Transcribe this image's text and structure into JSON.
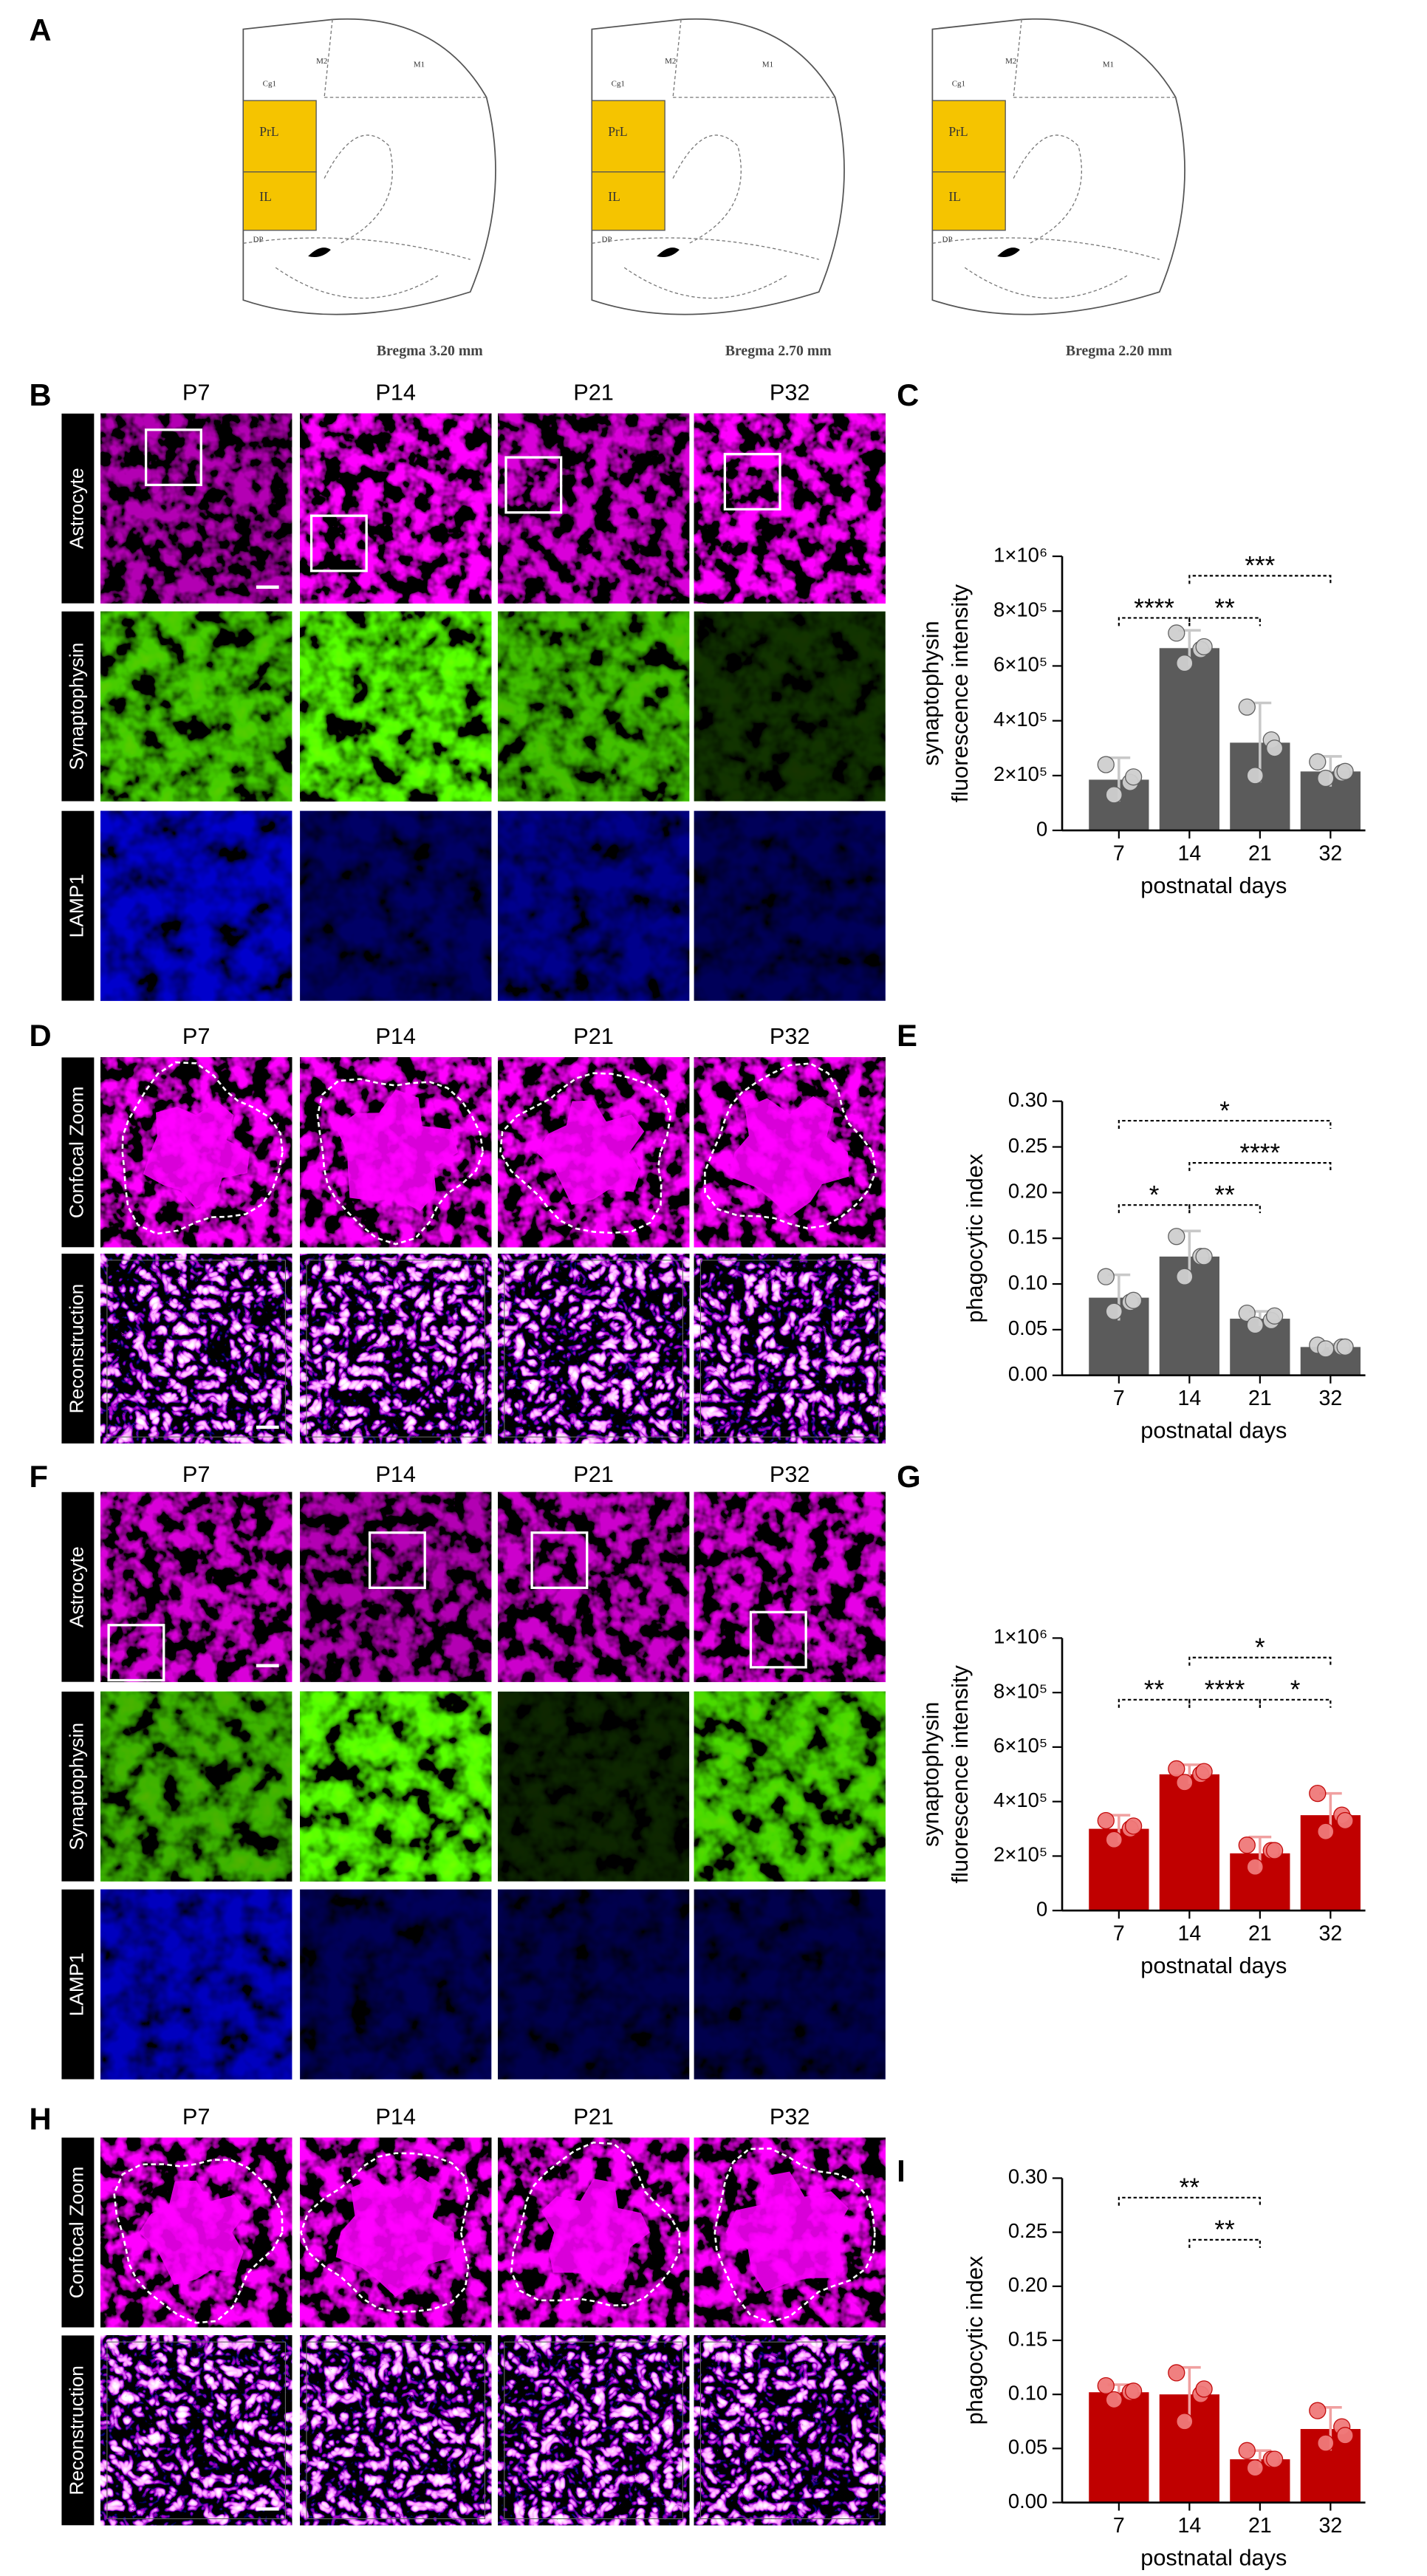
{
  "panel_letters": [
    "A",
    "B",
    "C",
    "D",
    "E",
    "F",
    "G",
    "H",
    "I"
  ],
  "atlas": {
    "bregma": [
      "Bregma 3.20 mm",
      "Bregma 2.70 mm",
      "Bregma 2.20 mm"
    ],
    "region_labels": [
      "M2",
      "M1",
      "Cg1",
      "PrL",
      "IL",
      "DP"
    ]
  },
  "image_grids": [
    {
      "columns": [
        "P7",
        "P14",
        "P21",
        "P32"
      ],
      "rows": [
        "Astrocyte",
        "Synaptophysin",
        "LAMP1"
      ]
    },
    {
      "columns": [
        "P7",
        "P14",
        "P21",
        "P32"
      ],
      "rows": [
        "Confocal Zoom",
        "Reconstruction"
      ]
    },
    {
      "columns": [
        "P7",
        "P14",
        "P21",
        "P32"
      ],
      "rows": [
        "Astrocyte",
        "Synaptophysin",
        "LAMP1"
      ]
    },
    {
      "columns": [
        "P7",
        "P14",
        "P21",
        "P32"
      ],
      "rows": [
        "Confocal Zoom",
        "Reconstruction"
      ]
    }
  ],
  "chart_data": [
    {
      "type": "bar",
      "y_label": [
        "synaptophysin",
        "fluorescence intensity"
      ],
      "x_label": "postnatal days",
      "categories": [
        "7",
        "14",
        "21",
        "32"
      ],
      "values": [
        185000,
        665000,
        320000,
        215000
      ],
      "errors": [
        80000,
        65000,
        145000,
        55000
      ],
      "points": [
        [
          240000,
          175000,
          130000,
          195000
        ],
        [
          720000,
          660000,
          610000,
          670000
        ],
        [
          450000,
          330000,
          200000,
          300000
        ],
        [
          250000,
          210000,
          190000,
          215000
        ]
      ],
      "color": "#5b5b5b",
      "point_color": "#cfcfcf",
      "error_color": "#c8c8c8",
      "ylim": [
        0,
        1000000
      ],
      "yticks": [
        0,
        {
          "value": 200000,
          "label": "2×10⁵"
        },
        {
          "value": 400000,
          "label": "4×10⁵"
        },
        {
          "value": 600000,
          "label": "6×10⁵"
        },
        {
          "value": 800000,
          "label": "8×10⁵"
        },
        {
          "value": 1000000,
          "label": "1×10⁶"
        }
      ],
      "significance": [
        {
          "pair": [
            "7",
            "14"
          ],
          "label": "****"
        },
        {
          "pair": [
            "14",
            "21"
          ],
          "label": "**"
        },
        {
          "pair": [
            "14",
            "32"
          ],
          "label": "***"
        }
      ]
    },
    {
      "type": "bar",
      "y_label": [
        "phagocytic index"
      ],
      "x_label": "postnatal days",
      "categories": [
        "7",
        "14",
        "21",
        "32"
      ],
      "values": [
        0.085,
        0.13,
        0.062,
        0.031
      ],
      "errors": [
        0.025,
        0.028,
        0.008,
        0.003
      ],
      "points": [
        [
          0.108,
          0.08,
          0.07,
          0.082
        ],
        [
          0.152,
          0.13,
          0.108,
          0.13
        ],
        [
          0.068,
          0.06,
          0.055,
          0.065
        ],
        [
          0.033,
          0.031,
          0.029,
          0.031
        ]
      ],
      "color": "#5b5b5b",
      "point_color": "#cfcfcf",
      "error_color": "#c8c8c8",
      "ylim": [
        0,
        0.3
      ],
      "yticks": [
        {
          "value": 0,
          "label": "0.00"
        },
        {
          "value": 0.05,
          "label": "0.05"
        },
        {
          "value": 0.1,
          "label": "0.10"
        },
        {
          "value": 0.15,
          "label": "0.15"
        },
        {
          "value": 0.2,
          "label": "0.20"
        },
        {
          "value": 0.25,
          "label": "0.25"
        },
        {
          "value": 0.3,
          "label": "0.30"
        }
      ],
      "significance": [
        {
          "pair": [
            "7",
            "32"
          ],
          "label": "*"
        },
        {
          "pair": [
            "14",
            "32"
          ],
          "label": "****"
        },
        {
          "pair": [
            "7",
            "14"
          ],
          "label": "*"
        },
        {
          "pair": [
            "14",
            "21"
          ],
          "label": "**"
        }
      ]
    },
    {
      "type": "bar",
      "y_label": [
        "synaptophysin",
        "fluorescence intensity"
      ],
      "x_label": "postnatal days",
      "categories": [
        "7",
        "14",
        "21",
        "32"
      ],
      "values": [
        300000,
        500000,
        210000,
        350000
      ],
      "errors": [
        50000,
        35000,
        60000,
        80000
      ],
      "points": [
        [
          330000,
          300000,
          260000,
          310000
        ],
        [
          520000,
          500000,
          470000,
          510000
        ],
        [
          240000,
          220000,
          160000,
          220000
        ],
        [
          430000,
          350000,
          290000,
          330000
        ]
      ],
      "color": "#c00000",
      "point_color": "#f07a7a",
      "error_color": "#f0a0a0",
      "ylim": [
        0,
        1000000
      ],
      "yticks": [
        0,
        {
          "value": 200000,
          "label": "2×10⁵"
        },
        {
          "value": 400000,
          "label": "4×10⁵"
        },
        {
          "value": 600000,
          "label": "6×10⁵"
        },
        {
          "value": 800000,
          "label": "8×10⁵"
        },
        {
          "value": 1000000,
          "label": "1×10⁶"
        }
      ],
      "significance": [
        {
          "pair": [
            "14",
            "32"
          ],
          "label": "*"
        },
        {
          "pair": [
            "7",
            "14"
          ],
          "label": "**"
        },
        {
          "pair": [
            "14",
            "21"
          ],
          "label": "****"
        },
        {
          "pair": [
            "21",
            "32"
          ],
          "label": "*"
        }
      ]
    },
    {
      "type": "bar",
      "y_label": [
        "phagocytic index"
      ],
      "x_label": "postnatal days",
      "categories": [
        "7",
        "14",
        "21",
        "32"
      ],
      "values": [
        0.102,
        0.1,
        0.04,
        0.068
      ],
      "errors": [
        0.007,
        0.025,
        0.008,
        0.02
      ],
      "points": [
        [
          0.108,
          0.102,
          0.095,
          0.103
        ],
        [
          0.12,
          0.1,
          0.075,
          0.105
        ],
        [
          0.048,
          0.04,
          0.032,
          0.04
        ],
        [
          0.085,
          0.07,
          0.055,
          0.062
        ]
      ],
      "color": "#c00000",
      "point_color": "#f07a7a",
      "error_color": "#f0a0a0",
      "ylim": [
        0,
        0.3
      ],
      "yticks": [
        {
          "value": 0,
          "label": "0.00"
        },
        {
          "value": 0.05,
          "label": "0.05"
        },
        {
          "value": 0.1,
          "label": "0.10"
        },
        {
          "value": 0.15,
          "label": "0.15"
        },
        {
          "value": 0.2,
          "label": "0.20"
        },
        {
          "value": 0.25,
          "label": "0.25"
        },
        {
          "value": 0.3,
          "label": "0.30"
        }
      ],
      "significance": [
        {
          "pair": [
            "7",
            "21"
          ],
          "label": "**"
        },
        {
          "pair": [
            "14",
            "21"
          ],
          "label": "**"
        }
      ]
    }
  ]
}
